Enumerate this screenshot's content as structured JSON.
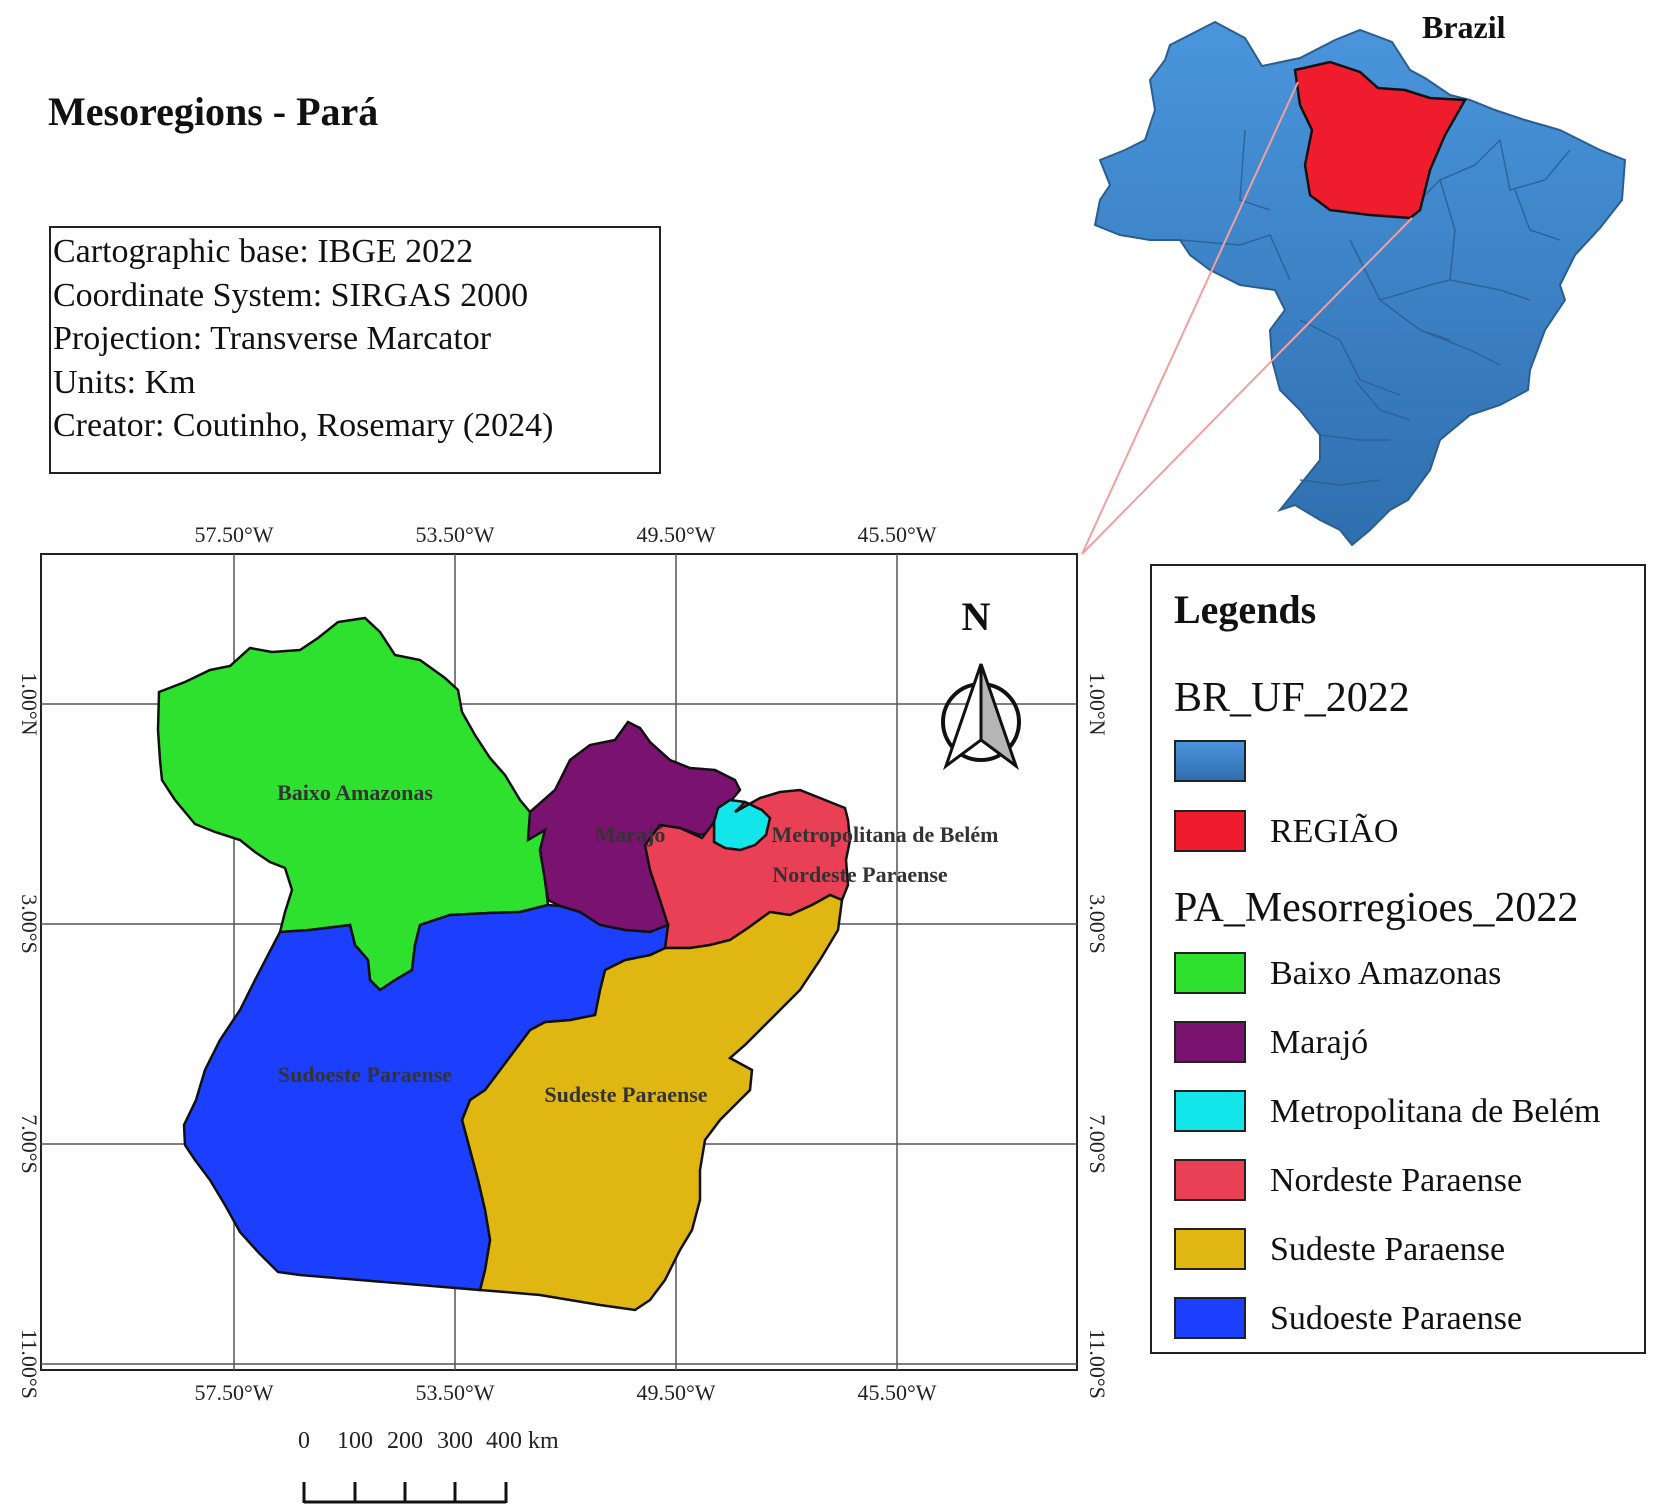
{
  "title": "Mesoregions - Pará",
  "info_lines": [
    "Cartographic base: IBGE 2022",
    "Coordinate System: SIRGAS 2000",
    "Projection: Transverse Marcator",
    "Units: Km",
    "Creator: Coutinho, Rosemary (2024)"
  ],
  "inset": {
    "label": "Brazil",
    "colors": {
      "states": "#3c86d0",
      "region": "#ee1c2c"
    }
  },
  "map": {
    "longitude_ticks": [
      "57.50°W",
      "53.50°W",
      "49.50°W",
      "45.50°W"
    ],
    "latitude_ticks": [
      "1.00°N",
      "3.00°S",
      "7.00°S",
      "11.00°S"
    ],
    "north_label": "N",
    "regions": [
      {
        "name": "Baixo Amazonas",
        "color": "#2ee12e"
      },
      {
        "name": "Marajó",
        "color": "#7a1370"
      },
      {
        "name": "Metropolitana de Belém",
        "color": "#13e6ea"
      },
      {
        "name": "Nordeste Paraense",
        "color": "#ea4055"
      },
      {
        "name": "Sudeste Paraense",
        "color": "#dfb612"
      },
      {
        "name": "Sudoeste Paraense",
        "color": "#1c3ffe"
      }
    ]
  },
  "legend": {
    "title": "Legends",
    "layer1_name": "BR_UF_2022",
    "layer1_items": [
      {
        "label": "",
        "color": "#3c86d0"
      },
      {
        "label": "REGIÃO",
        "color": "#ee1c2c"
      }
    ],
    "layer2_name": "PA_Mesorregioes_2022",
    "layer2_items": [
      {
        "label": "Baixo Amazonas",
        "color": "#2ee12e"
      },
      {
        "label": "Marajó",
        "color": "#7a1370"
      },
      {
        "label": "Metropolitana de Belém",
        "color": "#13e6ea"
      },
      {
        "label": "Nordeste Paraense",
        "color": "#ea4055"
      },
      {
        "label": "Sudeste Paraense",
        "color": "#dfb612"
      },
      {
        "label": "Sudoeste Paraense",
        "color": "#1c3ffe"
      }
    ]
  },
  "scale_bar": {
    "labels": [
      "0",
      "100",
      "200",
      "300",
      "400 km"
    ]
  }
}
